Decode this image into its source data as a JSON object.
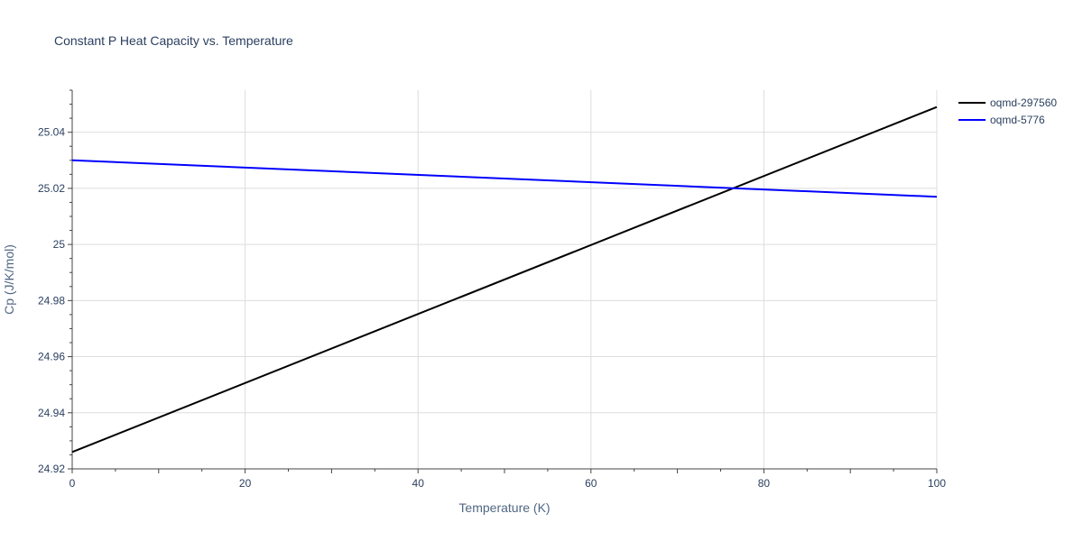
{
  "chart_data": {
    "type": "line",
    "title": "Constant P Heat Capacity vs. Temperature",
    "xlabel": "Temperature (K)",
    "ylabel": "Cp (J/K/mol)",
    "xlim": [
      0,
      100
    ],
    "ylim": [
      24.92,
      25.055
    ],
    "x_ticks": [
      0,
      20,
      40,
      60,
      80,
      100
    ],
    "x_tick_labels": [
      "0",
      "20",
      "40",
      "60",
      "80",
      "100"
    ],
    "y_ticks": [
      24.92,
      24.94,
      24.96,
      24.98,
      25.0,
      25.02,
      25.04
    ],
    "y_tick_labels": [
      "24.92",
      "24.94",
      "24.96",
      "24.98",
      "25",
      "25.02",
      "25.04"
    ],
    "grid": true,
    "legend_position": "top-right",
    "series": [
      {
        "name": "oqmd-297560",
        "color": "#000000",
        "x": [
          0,
          100
        ],
        "y": [
          24.926,
          25.049
        ]
      },
      {
        "name": "oqmd-5776",
        "color": "#0000ff",
        "x": [
          0,
          100
        ],
        "y": [
          25.03,
          25.017
        ]
      }
    ]
  }
}
